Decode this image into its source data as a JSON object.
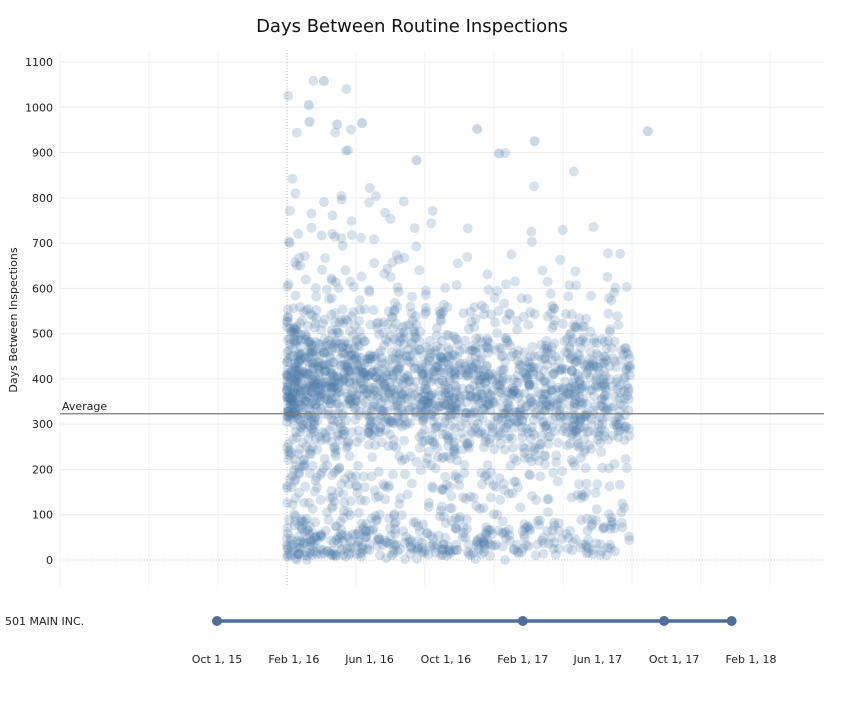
{
  "chart_data": [
    {
      "type": "scatter",
      "title": "Days Between Routine Inspections",
      "ylabel": "Days Between Inspections",
      "ylim": [
        -10,
        1110
      ],
      "yticks": [
        0,
        100,
        200,
        300,
        400,
        500,
        600,
        700,
        800,
        900,
        1000,
        1100
      ],
      "reference_line": {
        "label": "Average",
        "value": 323
      },
      "grid": true,
      "x_range": [
        "Feb 1, 16",
        "Jan 1, 18"
      ],
      "point_color": "#4e79a7",
      "point_opacity": 0.22,
      "point_count_approx": 6000,
      "density_profile": [
        {
          "x": "Feb 1, 16",
          "y_mode": 390,
          "note": "dense"
        },
        {
          "x": "Jun 1, 16",
          "y_mode": 370
        },
        {
          "x": "Oct 1, 16",
          "y_mode": 360
        },
        {
          "x": "Feb 1, 17",
          "y_mode": 350
        },
        {
          "x": "Jun 1, 17",
          "y_mode": 370
        },
        {
          "x": "Sep 15, 17",
          "y_mode": 380
        }
      ],
      "notable_points": [
        {
          "x": "Mar 20, 16",
          "y": 1058
        },
        {
          "x": "Feb 25, 16",
          "y": 1005
        },
        {
          "x": "Feb 26, 16",
          "y": 968
        },
        {
          "x": "Apr 10, 16",
          "y": 962
        },
        {
          "x": "May 20, 16",
          "y": 965
        },
        {
          "x": "Nov 20, 16",
          "y": 952
        },
        {
          "x": "Feb 20, 17",
          "y": 925
        },
        {
          "x": "Aug 20, 17",
          "y": 947
        },
        {
          "x": "Dec 25, 16",
          "y": 898
        },
        {
          "x": "Aug 15, 16",
          "y": 883
        }
      ]
    },
    {
      "type": "timeline",
      "row_label": "501 MAIN INC.",
      "events": [
        "Oct 1, 15",
        "Feb 1, 17",
        "Sep 15, 17",
        "Jan 1, 18"
      ],
      "x_ticks": [
        "Oct 1, 15",
        "Feb 1, 16",
        "Jun 1, 16",
        "Oct 1, 16",
        "Feb 1, 17",
        "Jun 1, 17",
        "Oct 1, 17",
        "Feb 1, 18"
      ],
      "color": "#4e6e9a"
    }
  ]
}
